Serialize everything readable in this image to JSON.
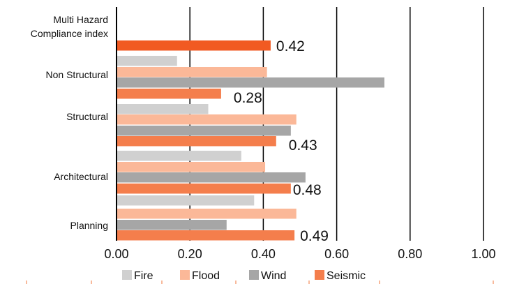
{
  "chart_data": {
    "type": "bar",
    "orientation": "horizontal",
    "xlim": [
      0,
      1
    ],
    "x_ticks": [
      "0.00",
      "0.20",
      "0.40",
      "0.60",
      "0.80",
      "1.00"
    ],
    "grid": true,
    "legend_position": "bottom",
    "categories": [
      {
        "label_lines": [
          "Multi Hazard",
          "Compliance index"
        ],
        "bars": [
          {
            "series": "Seismic",
            "value": 0.42,
            "label": "0.42"
          }
        ]
      },
      {
        "label_lines": [
          "Non Structural"
        ],
        "bars": [
          {
            "series": "Fire",
            "value": 0.165
          },
          {
            "series": "Flood",
            "value": 0.41
          },
          {
            "series": "Wind",
            "value": 0.73
          },
          {
            "series": "Seismic",
            "value": 0.285,
            "label": "0.28"
          }
        ]
      },
      {
        "label_lines": [
          "Structural"
        ],
        "bars": [
          {
            "series": "Fire",
            "value": 0.25
          },
          {
            "series": "Flood",
            "value": 0.49
          },
          {
            "series": "Wind",
            "value": 0.475
          },
          {
            "series": "Seismic",
            "value": 0.435,
            "label": "0.43"
          }
        ]
      },
      {
        "label_lines": [
          "Architectural"
        ],
        "bars": [
          {
            "series": "Fire",
            "value": 0.34
          },
          {
            "series": "Flood",
            "value": 0.405
          },
          {
            "series": "Wind",
            "value": 0.515
          },
          {
            "series": "Seismic",
            "value": 0.475,
            "label": "0.48"
          }
        ]
      },
      {
        "label_lines": [
          "Planning"
        ],
        "bars": [
          {
            "series": "Fire",
            "value": 0.375
          },
          {
            "series": "Flood",
            "value": 0.49
          },
          {
            "series": "Wind",
            "value": 0.3
          },
          {
            "series": "Seismic",
            "value": 0.485,
            "label": "0.49"
          }
        ]
      }
    ],
    "series": [
      {
        "name": "Fire",
        "color": "#d0d0d0"
      },
      {
        "name": "Flood",
        "color": "#fbb898"
      },
      {
        "name": "Wind",
        "color": "#a6a6a6"
      },
      {
        "name": "Seismic",
        "color": "#f47e4c"
      }
    ],
    "highlight_color": "#f15a22"
  }
}
